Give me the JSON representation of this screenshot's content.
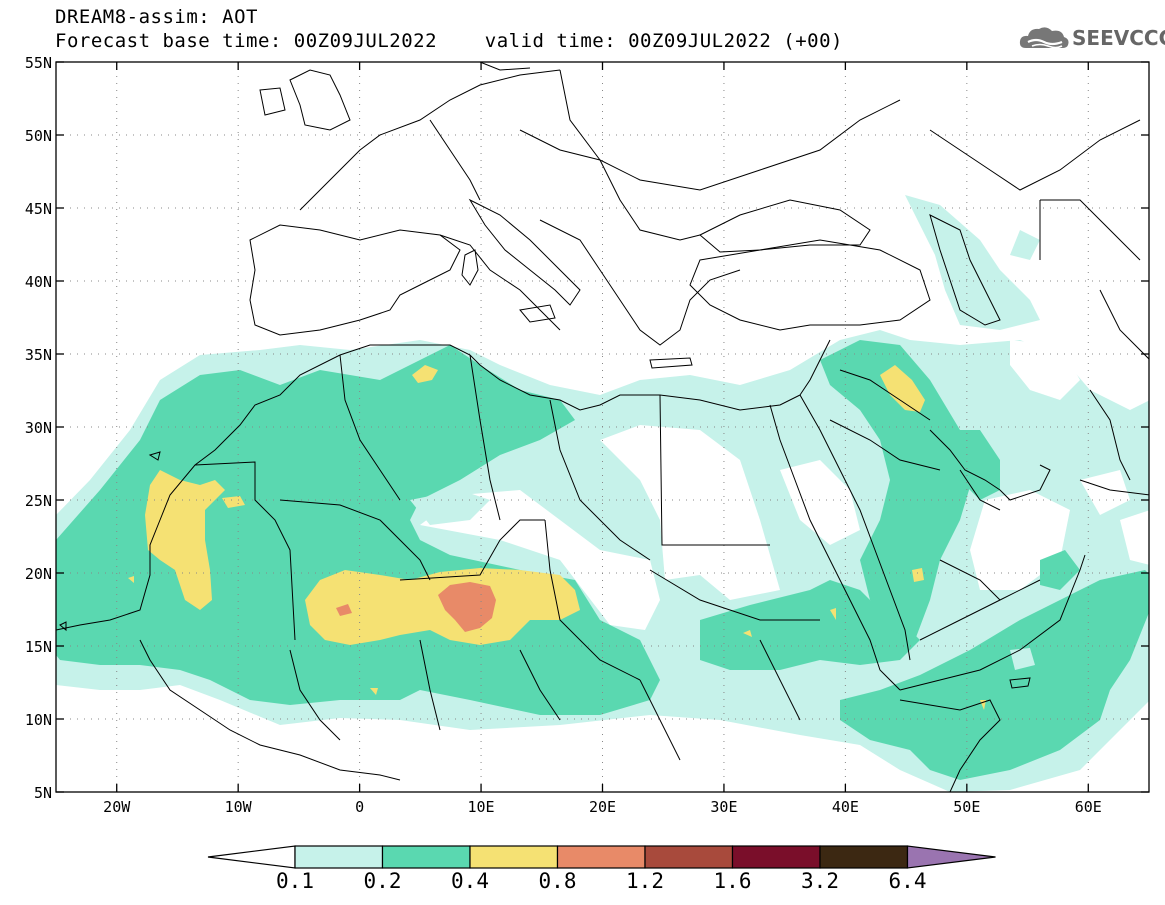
{
  "header": {
    "title": "DREAM8-assim: AOT",
    "subtitle": "Forecast base time: 00Z09JUL2022    valid time: 00Z09JUL2022 (+00)"
  },
  "logo": {
    "text": "SEEVCCC",
    "icon": "cloud-icon"
  },
  "map": {
    "lat_ticks": [
      "55N",
      "50N",
      "45N",
      "40N",
      "35N",
      "30N",
      "25N",
      "20N",
      "15N",
      "10N",
      "5N"
    ],
    "lon_ticks": [
      "20W",
      "10W",
      "0",
      "10E",
      "20E",
      "30E",
      "40E",
      "50E",
      "60E"
    ],
    "lon_range": [
      -25,
      65
    ],
    "lat_range": [
      5,
      55
    ]
  },
  "colorbar": {
    "levels": [
      "0.1",
      "0.2",
      "0.4",
      "0.8",
      "1.2",
      "1.6",
      "3.2",
      "6.4"
    ],
    "colors": [
      "#c6f2ea",
      "#5ad8b0",
      "#f5e173",
      "#e88a68",
      "#a84a3c",
      "#7a0e2a",
      "#3c2812",
      "#9a74b0"
    ]
  }
}
